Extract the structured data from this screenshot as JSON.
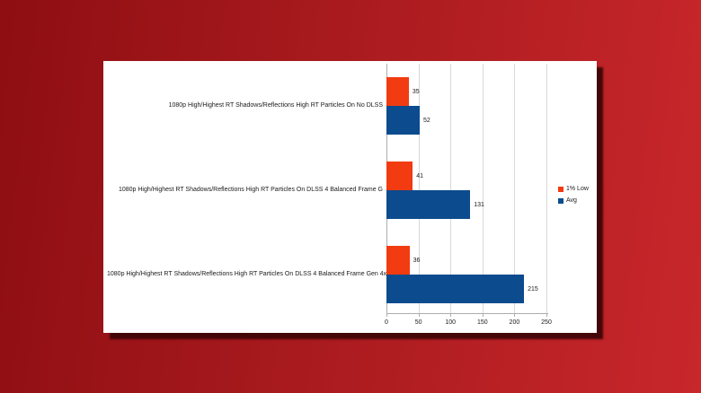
{
  "scene": {
    "background_gradient_left": "#8E0E12",
    "background_gradient_right": "#C8272B",
    "card_background": "#FFFFFF",
    "card_shadow_color": "#3E0506"
  },
  "chart_data": {
    "type": "bar",
    "orientation": "horizontal",
    "title": "",
    "categories": [
      "1080p High/Highest RT Shadows/Reflections High RT Particles On No DLSS",
      "1080p High/Highest RT Shadows/Reflections High RT Particles On DLSS 4 Balanced Frame G",
      "1080p High/Highest RT Shadows/Reflections High RT Particles On DLSS 4 Balanced Frame Gen 4x"
    ],
    "series": [
      {
        "name": "1% Low",
        "color": "#F23B11",
        "values": [
          35,
          41,
          36
        ]
      },
      {
        "name": "Avg",
        "color": "#0C4B8D",
        "values": [
          52,
          131,
          215
        ]
      }
    ],
    "value_labels": [
      [
        "35",
        "41",
        "36"
      ],
      [
        "52",
        "131",
        "215"
      ]
    ],
    "x_ticks": [
      "0",
      "50",
      "100",
      "150",
      "200",
      "250"
    ],
    "xlim": [
      0,
      250
    ],
    "grid": true,
    "legend_position": "right",
    "text_color": "#1A1A1A",
    "gridline_color": "#D9D9D9",
    "axis_color": "#ADADAD"
  }
}
